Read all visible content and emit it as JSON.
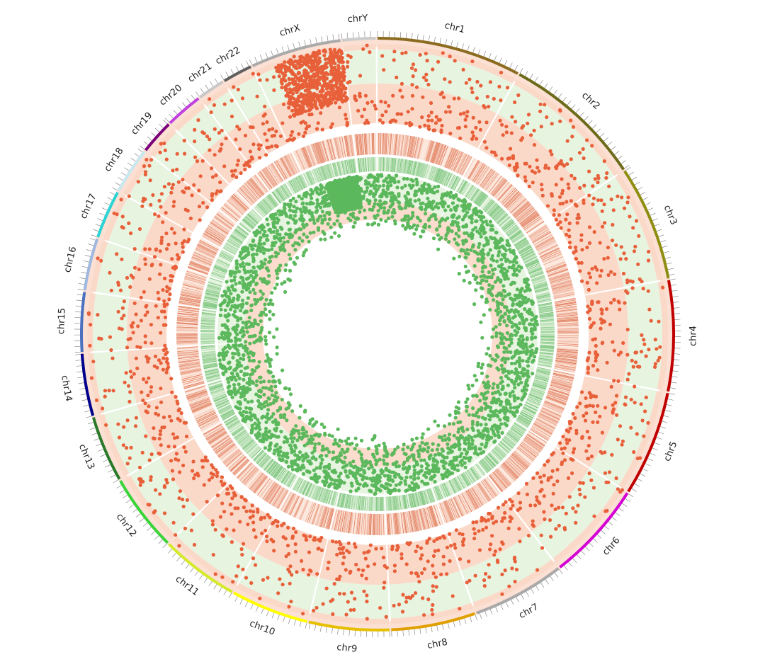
{
  "chart_data": {
    "type": "scatter",
    "layout": "circular",
    "chromosomes": [
      {
        "name": "chr1",
        "size": 248,
        "color": "#8b6b1f"
      },
      {
        "name": "chr2",
        "size": 242,
        "color": "#6b6b1a"
      },
      {
        "name": "chr3",
        "size": 198,
        "color": "#8e8e10"
      },
      {
        "name": "chr4",
        "size": 190,
        "color": "#c00000"
      },
      {
        "name": "chr5",
        "size": 181,
        "color": "#c00000"
      },
      {
        "name": "chr6",
        "size": 171,
        "color": "#d400d4"
      },
      {
        "name": "chr7",
        "size": 159,
        "color": "#a9a9a9"
      },
      {
        "name": "chr8",
        "size": 145,
        "color": "#e0a000"
      },
      {
        "name": "chr9",
        "size": 138,
        "color": "#e6c000"
      },
      {
        "name": "chr10",
        "size": 134,
        "color": "#ffff00"
      },
      {
        "name": "chr11",
        "size": 135,
        "color": "#d4ea2a"
      },
      {
        "name": "chr12",
        "size": 133,
        "color": "#38d438"
      },
      {
        "name": "chr13",
        "size": 114,
        "color": "#2a7a2a"
      },
      {
        "name": "chr14",
        "size": 107,
        "color": "#00008b"
      },
      {
        "name": "chr15",
        "size": 102,
        "color": "#4a70c0"
      },
      {
        "name": "chr16",
        "size": 90,
        "color": "#9fb8e0"
      },
      {
        "name": "chr17",
        "size": 83,
        "color": "#2ad4d4"
      },
      {
        "name": "chr18",
        "size": 80,
        "color": "#c8e8f0"
      },
      {
        "name": "chr19",
        "size": 59,
        "color": "#7a007a"
      },
      {
        "name": "chr20",
        "size": 64,
        "color": "#c040e0"
      },
      {
        "name": "chr21",
        "size": 47,
        "color": "#c8c8c8"
      },
      {
        "name": "chr22",
        "size": 51,
        "color": "#606060"
      },
      {
        "name": "chrX",
        "size": 156,
        "color": "#aaaaaa"
      },
      {
        "name": "chrY",
        "size": 57,
        "color": "#cccccc"
      }
    ],
    "tracks": [
      {
        "kind": "scatter",
        "color": "#e8603a",
        "background": [
          "#fbd9c9",
          "#e6f4e0"
        ]
      },
      {
        "kind": "heatmap",
        "color": "#d9603a",
        "background": "#fde8dd"
      },
      {
        "kind": "heatmap",
        "color": "#4caf50",
        "background": "#e6f4e0"
      },
      {
        "kind": "scatter",
        "color": "#5cb85c",
        "background": [
          "#e6f4e0",
          "#fbd9c9"
        ]
      }
    ],
    "colors": {
      "outer_ring": "#fbe0d3",
      "inner_ring": "#fbdccd",
      "scatter_outer": "#e8603a",
      "scatter_inner": "#5cb85c"
    },
    "grid": true,
    "legend": "none"
  }
}
